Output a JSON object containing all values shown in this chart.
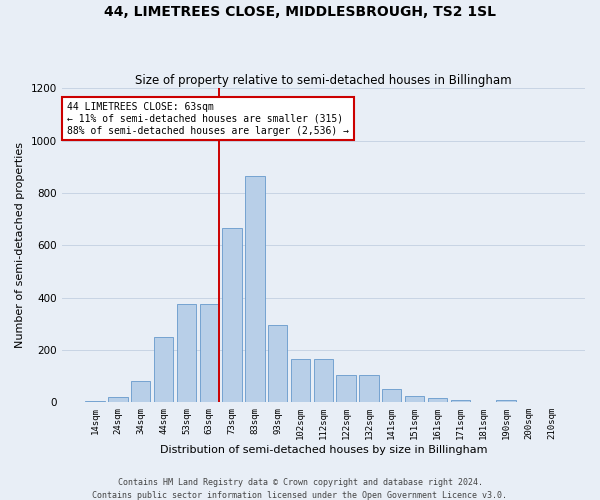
{
  "title": "44, LIMETREES CLOSE, MIDDLESBROUGH, TS2 1SL",
  "subtitle": "Size of property relative to semi-detached houses in Billingham",
  "xlabel": "Distribution of semi-detached houses by size in Billingham",
  "ylabel": "Number of semi-detached properties",
  "footer_line1": "Contains HM Land Registry data © Crown copyright and database right 2024.",
  "footer_line2": "Contains public sector information licensed under the Open Government Licence v3.0.",
  "annotation_title": "44 LIMETREES CLOSE: 63sqm",
  "annotation_line2": "← 11% of semi-detached houses are smaller (315)",
  "annotation_line3": "88% of semi-detached houses are larger (2,536) →",
  "bin_labels": [
    "14sqm",
    "24sqm",
    "34sqm",
    "44sqm",
    "53sqm",
    "63sqm",
    "73sqm",
    "83sqm",
    "93sqm",
    "102sqm",
    "112sqm",
    "122sqm",
    "132sqm",
    "141sqm",
    "151sqm",
    "161sqm",
    "171sqm",
    "181sqm",
    "190sqm",
    "200sqm",
    "210sqm"
  ],
  "bar_values": [
    5,
    20,
    80,
    250,
    375,
    375,
    665,
    865,
    295,
    165,
    165,
    105,
    105,
    50,
    25,
    15,
    10,
    2,
    10,
    2,
    2
  ],
  "bar_color": "#b8cfe8",
  "bar_edge_color": "#6699cc",
  "vline_color": "#cc0000",
  "vline_idx": 5,
  "annotation_box_facecolor": "#ffffff",
  "annotation_box_edgecolor": "#cc0000",
  "grid_color": "#c8d4e4",
  "background_color": "#e8eef6",
  "ylim": [
    0,
    1200
  ],
  "yticks": [
    0,
    200,
    400,
    600,
    800,
    1000,
    1200
  ],
  "title_fontsize": 10,
  "subtitle_fontsize": 8.5,
  "ylabel_fontsize": 8,
  "xlabel_fontsize": 8,
  "footer_fontsize": 6,
  "annotation_fontsize": 7,
  "xtick_fontsize": 6.5,
  "ytick_fontsize": 7.5
}
